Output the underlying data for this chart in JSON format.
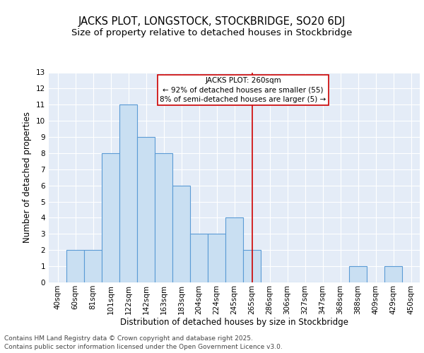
{
  "title": "JACKS PLOT, LONGSTOCK, STOCKBRIDGE, SO20 6DJ",
  "subtitle": "Size of property relative to detached houses in Stockbridge",
  "xlabel": "Distribution of detached houses by size in Stockbridge",
  "ylabel": "Number of detached properties",
  "categories": [
    "40sqm",
    "60sqm",
    "81sqm",
    "101sqm",
    "122sqm",
    "142sqm",
    "163sqm",
    "183sqm",
    "204sqm",
    "224sqm",
    "245sqm",
    "265sqm",
    "286sqm",
    "306sqm",
    "327sqm",
    "347sqm",
    "368sqm",
    "388sqm",
    "409sqm",
    "429sqm",
    "450sqm"
  ],
  "values": [
    0,
    2,
    2,
    8,
    11,
    9,
    8,
    6,
    3,
    3,
    4,
    2,
    0,
    0,
    0,
    0,
    0,
    1,
    0,
    1,
    0
  ],
  "bar_color": "#c9dff2",
  "bar_edge_color": "#5b9bd5",
  "vline_x_index": 11,
  "vline_color": "#cc0000",
  "annotation_text": "JACKS PLOT: 260sqm\n← 92% of detached houses are smaller (55)\n8% of semi-detached houses are larger (5) →",
  "annotation_box_color": "#ffffff",
  "annotation_box_edge_color": "#cc0000",
  "ylim": [
    0,
    13
  ],
  "yticks": [
    0,
    1,
    2,
    3,
    4,
    5,
    6,
    7,
    8,
    9,
    10,
    11,
    12,
    13
  ],
  "background_color": "#e4ecf7",
  "grid_color": "#ffffff",
  "fig_background": "#ffffff",
  "footer_line1": "Contains HM Land Registry data © Crown copyright and database right 2025.",
  "footer_line2": "Contains public sector information licensed under the Open Government Licence v3.0.",
  "title_fontsize": 10.5,
  "subtitle_fontsize": 9.5,
  "axis_label_fontsize": 8.5,
  "tick_fontsize": 7.5,
  "annotation_fontsize": 7.5,
  "footer_fontsize": 6.5
}
